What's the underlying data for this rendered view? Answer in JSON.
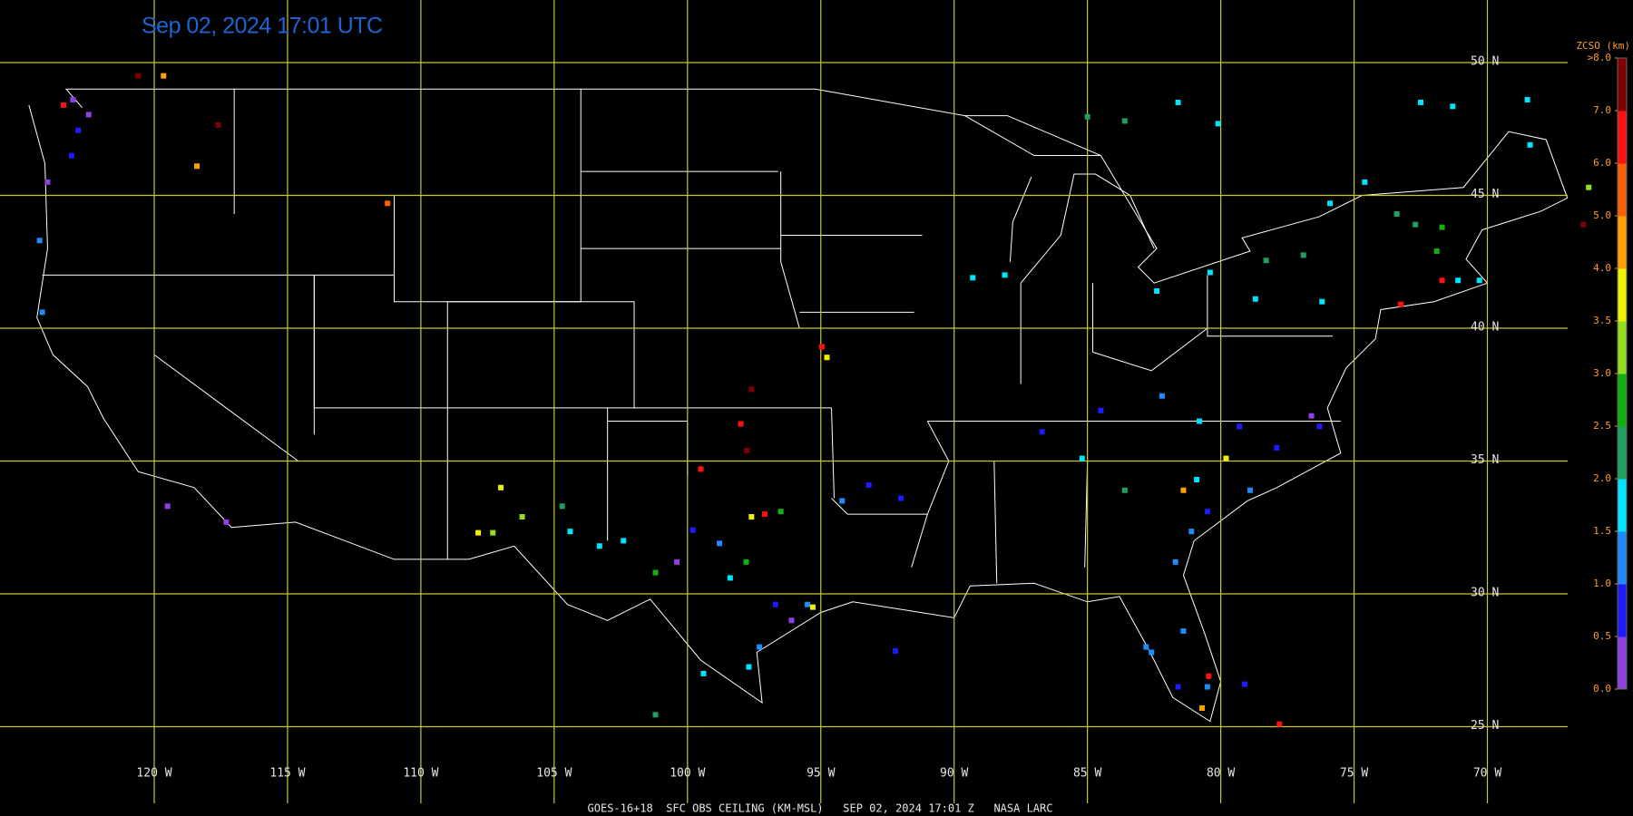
{
  "title": "Sep 02, 2024 17:01 UTC",
  "footer": "GOES-16+18  SFC OBS CEILING (KM-MSL)   SEP 02, 2024 17:01 Z   NASA LARC",
  "map": {
    "grid_color": "#c8c832",
    "lat_ticks": [
      {
        "value": 50,
        "label": "50 N"
      },
      {
        "value": 45,
        "label": "45 N"
      },
      {
        "value": 40,
        "label": "40 N"
      },
      {
        "value": 35,
        "label": "35 N"
      },
      {
        "value": 30,
        "label": "30 N"
      },
      {
        "value": 25,
        "label": "25 N"
      }
    ],
    "lon_ticks": [
      {
        "value": -120,
        "label": "120 W"
      },
      {
        "value": -115,
        "label": "115 W"
      },
      {
        "value": -110,
        "label": "110 W"
      },
      {
        "value": -105,
        "label": "105 W"
      },
      {
        "value": -100,
        "label": "100 W"
      },
      {
        "value": -95,
        "label": "95 W"
      },
      {
        "value": -90,
        "label": "90 W"
      },
      {
        "value": -85,
        "label": "85 W"
      },
      {
        "value": -80,
        "label": "80 W"
      },
      {
        "value": -75,
        "label": "75 W"
      },
      {
        "value": -70,
        "label": "70 W"
      }
    ]
  },
  "colorbar": {
    "title": "ZCSO (km)",
    "ticks": [
      {
        "value": 0,
        "label": "0.0"
      },
      0.5,
      {
        "value": 1,
        "label": "1.0"
      },
      1.5,
      {
        "value": 2,
        "label": "2.0"
      },
      2.5,
      {
        "value": 3,
        "label": "3.0"
      },
      3.5,
      {
        "value": 4,
        "label": "4.0"
      },
      {
        "value": 5,
        "label": "5.0"
      },
      {
        "value": 6,
        "label": "6.0"
      },
      {
        "value": 7,
        "label": "7.0"
      },
      {
        "value": 8,
        "label": ">8.0"
      }
    ],
    "colors": [
      "#9040e0",
      "#1c1cff",
      "#1e8cff",
      "#00e5ff",
      "#20a060",
      "#10b010",
      "#90e020",
      "#f0f000",
      "#ffa000",
      "#ff6000",
      "#ff1010",
      "#800000"
    ]
  },
  "stations": [
    {
      "lon": -123.05,
      "lat": 48.6,
      "ceiling": 0.3
    },
    {
      "lon": -122.46,
      "lat": 48.04,
      "ceiling": 0.3
    },
    {
      "lon": -124.0,
      "lat": 45.5,
      "ceiling": 0.3
    },
    {
      "lon": -122.85,
      "lat": 47.45,
      "ceiling": 0.8
    },
    {
      "lon": -123.4,
      "lat": 48.4,
      "ceiling": 6.5
    },
    {
      "lon": -123.1,
      "lat": 46.5,
      "ceiling": 0.8
    },
    {
      "lon": -124.3,
      "lat": 43.3,
      "ceiling": 1.3
    },
    {
      "lon": -124.2,
      "lat": 40.6,
      "ceiling": 1.3
    },
    {
      "lon": -119.5,
      "lat": 33.3,
      "ceiling": 0.3
    },
    {
      "lon": -117.3,
      "lat": 32.7,
      "ceiling": 0.3
    },
    {
      "lon": -120.6,
      "lat": 49.5,
      "ceiling": 7.5
    },
    {
      "lon": -119.65,
      "lat": 49.5,
      "ceiling": 4.5
    },
    {
      "lon": -118.4,
      "lat": 46.1,
      "ceiling": 4.5
    },
    {
      "lon": -117.6,
      "lat": 47.65,
      "ceiling": 7.5
    },
    {
      "lon": -111.25,
      "lat": 44.7,
      "ceiling": 5.5
    },
    {
      "lon": -94.96,
      "lat": 39.3,
      "ceiling": 6.5
    },
    {
      "lon": -94.77,
      "lat": 38.9,
      "ceiling": 3.8
    },
    {
      "lon": -97.6,
      "lat": 37.7,
      "ceiling": 7.5
    },
    {
      "lon": -98.0,
      "lat": 36.4,
      "ceiling": 6.5
    },
    {
      "lon": -97.77,
      "lat": 35.4,
      "ceiling": 7.5
    },
    {
      "lon": -99.5,
      "lat": 34.7,
      "ceiling": 6.5
    },
    {
      "lon": -107.0,
      "lat": 34.0,
      "ceiling": 3.8
    },
    {
      "lon": -107.85,
      "lat": 32.3,
      "ceiling": 3.8
    },
    {
      "lon": -107.3,
      "lat": 32.3,
      "ceiling": 3.3
    },
    {
      "lon": -106.2,
      "lat": 32.9,
      "ceiling": 3.3
    },
    {
      "lon": -104.7,
      "lat": 33.3,
      "ceiling": 2.3
    },
    {
      "lon": -104.4,
      "lat": 32.35,
      "ceiling": 1.8
    },
    {
      "lon": -103.3,
      "lat": 31.8,
      "ceiling": 1.8
    },
    {
      "lon": -102.4,
      "lat": 32.0,
      "ceiling": 1.8
    },
    {
      "lon": -101.2,
      "lat": 30.8,
      "ceiling": 2.8
    },
    {
      "lon": -99.8,
      "lat": 32.4,
      "ceiling": 0.8
    },
    {
      "lon": -98.8,
      "lat": 31.9,
      "ceiling": 1.3
    },
    {
      "lon": -97.6,
      "lat": 32.9,
      "ceiling": 3.8
    },
    {
      "lon": -97.1,
      "lat": 33.0,
      "ceiling": 6.5
    },
    {
      "lon": -96.5,
      "lat": 33.1,
      "ceiling": 2.8
    },
    {
      "lon": -98.4,
      "lat": 30.6,
      "ceiling": 1.8
    },
    {
      "lon": -97.8,
      "lat": 31.2,
      "ceiling": 2.8
    },
    {
      "lon": -96.7,
      "lat": 29.6,
      "ceiling": 0.8
    },
    {
      "lon": -95.5,
      "lat": 29.6,
      "ceiling": 1.3
    },
    {
      "lon": -95.3,
      "lat": 29.5,
      "ceiling": 3.8
    },
    {
      "lon": -96.1,
      "lat": 29.0,
      "ceiling": 0.3
    },
    {
      "lon": -97.3,
      "lat": 28.0,
      "ceiling": 1.3
    },
    {
      "lon": -97.7,
      "lat": 27.25,
      "ceiling": 1.8
    },
    {
      "lon": -99.4,
      "lat": 27.0,
      "ceiling": 1.8
    },
    {
      "lon": -101.2,
      "lat": 25.45,
      "ceiling": 2.3
    },
    {
      "lon": -100.4,
      "lat": 31.2,
      "ceiling": 0.3
    },
    {
      "lon": -93.2,
      "lat": 34.1,
      "ceiling": 0.8
    },
    {
      "lon": -92.0,
      "lat": 33.6,
      "ceiling": 0.8
    },
    {
      "lon": -92.2,
      "lat": 27.85,
      "ceiling": 0.8
    },
    {
      "lon": -94.2,
      "lat": 33.5,
      "ceiling": 1.3
    },
    {
      "lon": -89.3,
      "lat": 41.9,
      "ceiling": 1.8
    },
    {
      "lon": -88.1,
      "lat": 42.0,
      "ceiling": 1.8
    },
    {
      "lon": -86.7,
      "lat": 36.1,
      "ceiling": 0.8
    },
    {
      "lon": -81.6,
      "lat": 48.5,
      "ceiling": 1.8
    },
    {
      "lon": -83.6,
      "lat": 47.8,
      "ceiling": 2.3
    },
    {
      "lon": -85.0,
      "lat": 47.96,
      "ceiling": 2.3
    },
    {
      "lon": -80.1,
      "lat": 47.7,
      "ceiling": 1.8
    },
    {
      "lon": -72.5,
      "lat": 48.5,
      "ceiling": 1.8
    },
    {
      "lon": -71.3,
      "lat": 48.35,
      "ceiling": 1.8
    },
    {
      "lon": -68.5,
      "lat": 48.6,
      "ceiling": 1.8
    },
    {
      "lon": -66.2,
      "lat": 45.3,
      "ceiling": 3.3
    },
    {
      "lon": -66.4,
      "lat": 43.9,
      "ceiling": 7.5
    },
    {
      "lon": -68.4,
      "lat": 46.9,
      "ceiling": 1.8
    },
    {
      "lon": -82.4,
      "lat": 41.4,
      "ceiling": 1.8
    },
    {
      "lon": -80.4,
      "lat": 42.1,
      "ceiling": 1.8
    },
    {
      "lon": -78.7,
      "lat": 41.1,
      "ceiling": 1.8
    },
    {
      "lon": -76.2,
      "lat": 41.0,
      "ceiling": 1.8
    },
    {
      "lon": -75.9,
      "lat": 44.7,
      "ceiling": 1.8
    },
    {
      "lon": -74.6,
      "lat": 45.5,
      "ceiling": 1.8
    },
    {
      "lon": -78.3,
      "lat": 42.55,
      "ceiling": 2.3
    },
    {
      "lon": -76.9,
      "lat": 42.75,
      "ceiling": 2.3
    },
    {
      "lon": -73.4,
      "lat": 44.3,
      "ceiling": 2.3
    },
    {
      "lon": -71.9,
      "lat": 42.9,
      "ceiling": 2.8
    },
    {
      "lon": -71.7,
      "lat": 43.8,
      "ceiling": 2.8
    },
    {
      "lon": -72.7,
      "lat": 43.9,
      "ceiling": 2.3
    },
    {
      "lon": -71.1,
      "lat": 41.8,
      "ceiling": 1.8
    },
    {
      "lon": -70.3,
      "lat": 41.8,
      "ceiling": 1.8
    },
    {
      "lon": -71.7,
      "lat": 41.8,
      "ceiling": 6.5
    },
    {
      "lon": -73.25,
      "lat": 40.9,
      "ceiling": 6.5
    },
    {
      "lon": -85.2,
      "lat": 35.1,
      "ceiling": 1.8
    },
    {
      "lon": -83.6,
      "lat": 33.9,
      "ceiling": 2.3
    },
    {
      "lon": -82.2,
      "lat": 37.45,
      "ceiling": 1.3
    },
    {
      "lon": -80.8,
      "lat": 36.5,
      "ceiling": 1.8
    },
    {
      "lon": -79.3,
      "lat": 36.3,
      "ceiling": 0.8
    },
    {
      "lon": -77.9,
      "lat": 35.5,
      "ceiling": 0.8
    },
    {
      "lon": -76.6,
      "lat": 36.7,
      "ceiling": 0.3
    },
    {
      "lon": -76.3,
      "lat": 36.3,
      "ceiling": 0.8
    },
    {
      "lon": -79.8,
      "lat": 35.1,
      "ceiling": 3.8
    },
    {
      "lon": -81.4,
      "lat": 33.9,
      "ceiling": 4.5
    },
    {
      "lon": -80.9,
      "lat": 34.3,
      "ceiling": 1.8
    },
    {
      "lon": -80.5,
      "lat": 33.1,
      "ceiling": 0.8
    },
    {
      "lon": -78.9,
      "lat": 33.9,
      "ceiling": 1.3
    },
    {
      "lon": -81.1,
      "lat": 32.35,
      "ceiling": 1.3
    },
    {
      "lon": -81.7,
      "lat": 31.2,
      "ceiling": 1.3
    },
    {
      "lon": -82.8,
      "lat": 28.0,
      "ceiling": 1.3
    },
    {
      "lon": -82.6,
      "lat": 27.8,
      "ceiling": 1.3
    },
    {
      "lon": -81.4,
      "lat": 28.6,
      "ceiling": 1.3
    },
    {
      "lon": -81.6,
      "lat": 26.5,
      "ceiling": 0.8
    },
    {
      "lon": -80.5,
      "lat": 26.5,
      "ceiling": 1.3
    },
    {
      "lon": -80.45,
      "lat": 26.9,
      "ceiling": 6.5
    },
    {
      "lon": -80.7,
      "lat": 25.7,
      "ceiling": 4.5
    },
    {
      "lon": -77.8,
      "lat": 25.1,
      "ceiling": 6.5
    },
    {
      "lon": -79.1,
      "lat": 26.6,
      "ceiling": 0.8
    },
    {
      "lon": -84.5,
      "lat": 36.9,
      "ceiling": 0.8
    }
  ]
}
